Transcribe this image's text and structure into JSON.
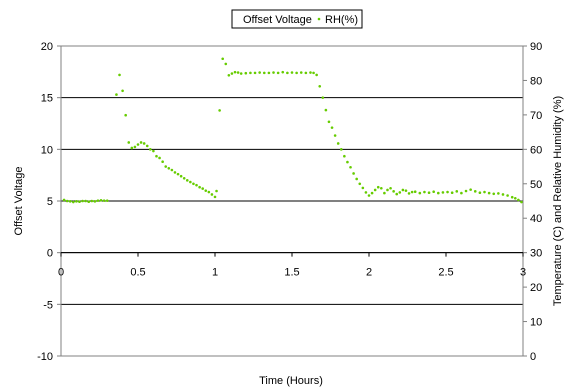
{
  "chart_data": {
    "type": "scatter",
    "xlabel": "Time (Hours)",
    "ylabel": "Offset Voltage",
    "y2label": "Temperature (C) and Relative Humidity (%)",
    "xlim": [
      0,
      3
    ],
    "ylim": [
      -10,
      20
    ],
    "y2lim": [
      0,
      90
    ],
    "x_ticks": [
      "0",
      "0.5",
      "1",
      "1.5",
      "2",
      "2.5",
      "3"
    ],
    "y_ticks": [
      "-10",
      "-5",
      "0",
      "5",
      "10",
      "15",
      "20"
    ],
    "y2_ticks": [
      "0",
      "10",
      "20",
      "30",
      "40",
      "50",
      "60",
      "70",
      "80",
      "90"
    ],
    "grid": "horizontal",
    "legend_position": "top-center",
    "colors": {
      "rh": "#66cc00",
      "grid": "#000000",
      "frame": "#808080"
    },
    "series": [
      {
        "name": "Offset Voltage",
        "axis": "left",
        "points": []
      },
      {
        "name": "RH(%)",
        "axis": "right",
        "points": [
          [
            0.02,
            45.3
          ],
          [
            0.04,
            45.0
          ],
          [
            0.06,
            44.9
          ],
          [
            0.08,
            44.7
          ],
          [
            0.1,
            44.9
          ],
          [
            0.12,
            44.8
          ],
          [
            0.14,
            45.0
          ],
          [
            0.16,
            45.0
          ],
          [
            0.18,
            44.8
          ],
          [
            0.2,
            45.0
          ],
          [
            0.22,
            44.9
          ],
          [
            0.24,
            45.1
          ],
          [
            0.26,
            45.2
          ],
          [
            0.28,
            45.1
          ],
          [
            0.3,
            45.1
          ],
          [
            0.36,
            75.9
          ],
          [
            0.38,
            81.6
          ],
          [
            0.4,
            77.0
          ],
          [
            0.42,
            69.9
          ],
          [
            0.44,
            62.0
          ],
          [
            0.46,
            60.4
          ],
          [
            0.48,
            60.7
          ],
          [
            0.5,
            61.4
          ],
          [
            0.52,
            62.0
          ],
          [
            0.54,
            61.7
          ],
          [
            0.56,
            61.0
          ],
          [
            0.58,
            60.0
          ],
          [
            0.6,
            59.5
          ],
          [
            0.62,
            58.0
          ],
          [
            0.64,
            57.5
          ],
          [
            0.66,
            56.4
          ],
          [
            0.68,
            55.0
          ],
          [
            0.7,
            54.5
          ],
          [
            0.72,
            54.0
          ],
          [
            0.74,
            53.3
          ],
          [
            0.76,
            52.8
          ],
          [
            0.78,
            52.2
          ],
          [
            0.8,
            51.6
          ],
          [
            0.82,
            51.0
          ],
          [
            0.84,
            50.5
          ],
          [
            0.86,
            50.0
          ],
          [
            0.88,
            49.6
          ],
          [
            0.9,
            49.0
          ],
          [
            0.92,
            48.6
          ],
          [
            0.94,
            48.0
          ],
          [
            0.96,
            47.6
          ],
          [
            0.98,
            46.9
          ],
          [
            1.0,
            46.2
          ],
          [
            1.01,
            47.9
          ],
          [
            1.03,
            71.3
          ],
          [
            1.05,
            86.3
          ],
          [
            1.07,
            84.8
          ],
          [
            1.09,
            81.5
          ],
          [
            1.11,
            82.0
          ],
          [
            1.13,
            82.4
          ],
          [
            1.15,
            82.3
          ],
          [
            1.17,
            82.0
          ],
          [
            1.2,
            82.1
          ],
          [
            1.23,
            82.2
          ],
          [
            1.26,
            82.2
          ],
          [
            1.29,
            82.3
          ],
          [
            1.32,
            82.2
          ],
          [
            1.35,
            82.2
          ],
          [
            1.38,
            82.3
          ],
          [
            1.41,
            82.2
          ],
          [
            1.44,
            82.4
          ],
          [
            1.47,
            82.2
          ],
          [
            1.5,
            82.3
          ],
          [
            1.53,
            82.2
          ],
          [
            1.56,
            82.3
          ],
          [
            1.59,
            82.2
          ],
          [
            1.62,
            82.3
          ],
          [
            1.64,
            82.2
          ],
          [
            1.66,
            81.6
          ],
          [
            1.68,
            78.3
          ],
          [
            1.7,
            75.0
          ],
          [
            1.72,
            71.4
          ],
          [
            1.74,
            68.0
          ],
          [
            1.76,
            66.3
          ],
          [
            1.78,
            64.0
          ],
          [
            1.8,
            61.7
          ],
          [
            1.82,
            60.0
          ],
          [
            1.84,
            58.0
          ],
          [
            1.86,
            56.3
          ],
          [
            1.88,
            54.8
          ],
          [
            1.9,
            53.0
          ],
          [
            1.92,
            51.4
          ],
          [
            1.94,
            50.0
          ],
          [
            1.96,
            48.8
          ],
          [
            1.98,
            47.5
          ],
          [
            2.0,
            46.6
          ],
          [
            2.02,
            47.3
          ],
          [
            2.04,
            48.2
          ],
          [
            2.06,
            49.0
          ],
          [
            2.08,
            48.7
          ],
          [
            2.1,
            47.3
          ],
          [
            2.12,
            48.2
          ],
          [
            2.14,
            48.7
          ],
          [
            2.16,
            47.8
          ],
          [
            2.18,
            47.0
          ],
          [
            2.2,
            47.5
          ],
          [
            2.22,
            48.2
          ],
          [
            2.24,
            48.0
          ],
          [
            2.26,
            47.2
          ],
          [
            2.28,
            47.6
          ],
          [
            2.3,
            47.7
          ],
          [
            2.33,
            47.3
          ],
          [
            2.36,
            47.6
          ],
          [
            2.39,
            47.4
          ],
          [
            2.42,
            47.7
          ],
          [
            2.45,
            47.3
          ],
          [
            2.48,
            47.5
          ],
          [
            2.51,
            47.6
          ],
          [
            2.54,
            47.4
          ],
          [
            2.57,
            47.8
          ],
          [
            2.6,
            47.3
          ],
          [
            2.63,
            47.9
          ],
          [
            2.66,
            48.3
          ],
          [
            2.69,
            47.8
          ],
          [
            2.72,
            47.4
          ],
          [
            2.75,
            47.6
          ],
          [
            2.78,
            47.3
          ],
          [
            2.81,
            47.1
          ],
          [
            2.84,
            47.2
          ],
          [
            2.87,
            46.9
          ],
          [
            2.9,
            46.6
          ],
          [
            2.93,
            46.1
          ],
          [
            2.95,
            45.8
          ],
          [
            2.97,
            45.3
          ],
          [
            2.99,
            44.7
          ]
        ]
      }
    ]
  }
}
